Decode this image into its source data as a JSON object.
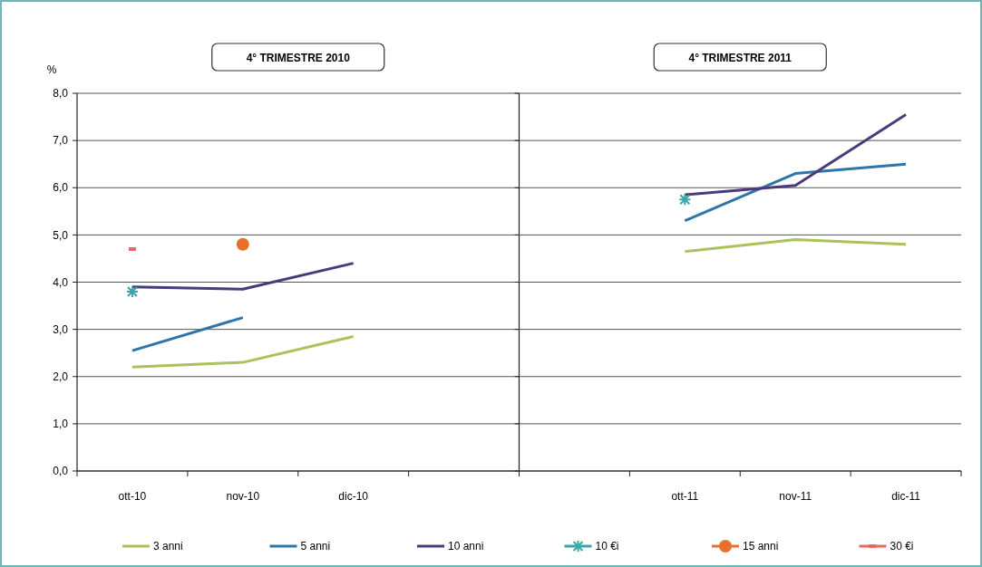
{
  "chart_data": [
    {
      "type": "line",
      "title": "4° TRIMESTRE 2010",
      "ylabel": "%",
      "categories": [
        "ott-10",
        "nov-10",
        "dic-10",
        null
      ],
      "ylim": [
        0,
        8
      ],
      "yticks": [
        {
          "value": 0,
          "label": "0,0"
        },
        {
          "value": 1,
          "label": "1,0"
        },
        {
          "value": 2,
          "label": "2,0"
        },
        {
          "value": 3,
          "label": "3,0"
        },
        {
          "value": 4,
          "label": "4,0"
        },
        {
          "value": 5,
          "label": "5,0"
        },
        {
          "value": 6,
          "label": "6,0"
        },
        {
          "value": 7,
          "label": "7,0"
        },
        {
          "value": 8,
          "label": "8,0"
        }
      ],
      "grid": "y",
      "legend": "bottom",
      "series": [
        {
          "name": "3 anni",
          "color": "#a9c25a",
          "values": [
            2.2,
            2.3,
            2.85,
            null
          ]
        },
        {
          "name": "5 anni",
          "color": "#2e75a8",
          "values": [
            2.55,
            3.25,
            null,
            null
          ]
        },
        {
          "name": "10 anni",
          "color": "#4a3a7a",
          "values": [
            3.9,
            3.85,
            4.4,
            null
          ]
        },
        {
          "name": "10 €i",
          "color": "#3aa6a8",
          "type": "scatter",
          "marker": "cross",
          "values": [
            3.8,
            null,
            null,
            null
          ]
        },
        {
          "name": "15 anni",
          "color": "#e8702a",
          "type": "scatter",
          "marker": "circle",
          "values": [
            null,
            4.8,
            null,
            null
          ]
        },
        {
          "name": "30 €i",
          "color": "#e86a5a",
          "type": "scatter",
          "marker": "square",
          "values": [
            4.7,
            null,
            null,
            null
          ]
        }
      ]
    },
    {
      "type": "line",
      "title": "4° TRIMESTRE 2011",
      "categories": [
        null,
        "ott-11",
        "nov-11",
        "dic-11"
      ],
      "ylim": [
        0,
        8
      ],
      "yticks": [
        {
          "value": 0,
          "label": null
        },
        {
          "value": 1,
          "label": null
        },
        {
          "value": 2,
          "label": null
        },
        {
          "value": 3,
          "label": null
        },
        {
          "value": 4,
          "label": null
        },
        {
          "value": 5,
          "label": null
        },
        {
          "value": 6,
          "label": null
        },
        {
          "value": 7,
          "label": null
        },
        {
          "value": 8,
          "label": null
        }
      ],
      "grid": "y",
      "tick_labels": "x",
      "series": [
        {
          "color": "#a9c25a",
          "values": [
            null,
            4.65,
            4.9,
            4.8
          ]
        },
        {
          "color": "#2e75a8",
          "values": [
            null,
            5.3,
            6.3,
            6.5
          ]
        },
        {
          "color": "#4a3a7a",
          "values": [
            null,
            5.85,
            6.05,
            7.55
          ]
        },
        {
          "color": "#3aa6a8",
          "type": "scatter",
          "marker": "cross",
          "values": [
            null,
            5.75,
            null,
            null
          ]
        }
      ]
    }
  ]
}
